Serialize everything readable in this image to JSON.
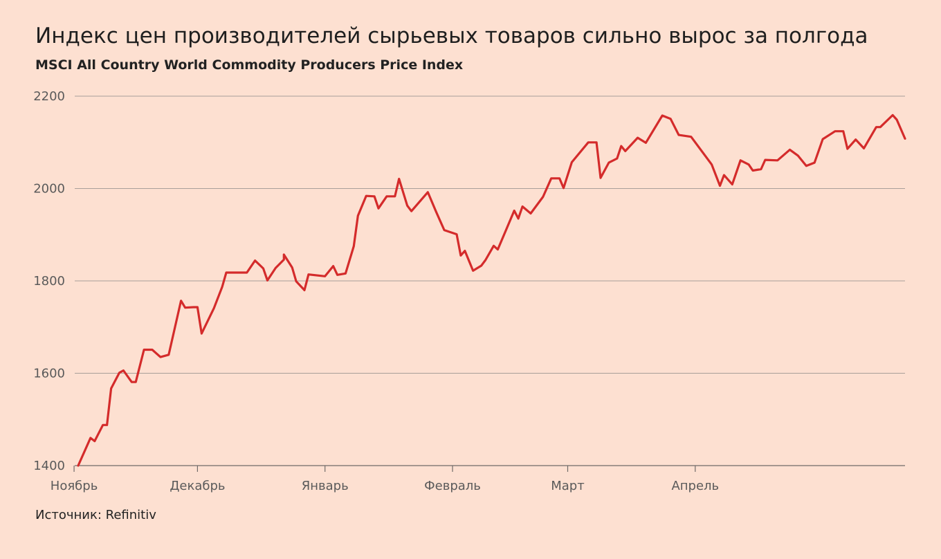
{
  "title": "Индекс цен производителей сырьевых товаров сильно вырос за полгода",
  "subtitle": "MSCI All Country World Commodity Producers Price Index",
  "source": "Источник: Refinitiv",
  "colors": {
    "background": "#fde0d1",
    "line": "#d42b2b",
    "grid": "#a89e99"
  },
  "chart_data": {
    "type": "line",
    "title": "Индекс цен производителей сырьевых товаров сильно вырос за полгода",
    "subtitle": "MSCI All Country World Commodity Producers Price Index",
    "ylim": [
      1400,
      2200
    ],
    "yticks": [
      1400,
      1600,
      1800,
      2000,
      2200
    ],
    "grid": true,
    "x_start": "2020-11-02",
    "x_end": "2021-04-30",
    "xticks": [
      {
        "label": "Ноябрь",
        "date": "2020-11-01"
      },
      {
        "label": "Декабрь",
        "date": "2020-12-01"
      },
      {
        "label": "Январь",
        "date": "2021-01-01"
      },
      {
        "label": "Февраль",
        "date": "2021-02-01"
      },
      {
        "label": "Март",
        "date": "2021-03-01"
      },
      {
        "label": "Апрель",
        "date": "2021-04-01"
      }
    ],
    "series": [
      {
        "values": [
          {
            "x": "2020-11-02",
            "y": 1400
          },
          {
            "x": "2020-11-05",
            "y": 1460
          },
          {
            "x": "2020-11-06",
            "y": 1453
          },
          {
            "x": "2020-11-08",
            "y": 1488
          },
          {
            "x": "2020-11-09",
            "y": 1488
          },
          {
            "x": "2020-11-10",
            "y": 1567
          },
          {
            "x": "2020-11-12",
            "y": 1601
          },
          {
            "x": "2020-11-13",
            "y": 1606
          },
          {
            "x": "2020-11-15",
            "y": 1581
          },
          {
            "x": "2020-11-16",
            "y": 1581
          },
          {
            "x": "2020-11-18",
            "y": 1651
          },
          {
            "x": "2020-11-20",
            "y": 1651
          },
          {
            "x": "2020-11-22",
            "y": 1635
          },
          {
            "x": "2020-11-24",
            "y": 1640
          },
          {
            "x": "2020-11-27",
            "y": 1757
          },
          {
            "x": "2020-11-28",
            "y": 1742
          },
          {
            "x": "2020-11-30",
            "y": 1743
          },
          {
            "x": "2020-12-01",
            "y": 1743
          },
          {
            "x": "2020-12-02",
            "y": 1686
          },
          {
            "x": "2020-12-05",
            "y": 1741
          },
          {
            "x": "2020-12-07",
            "y": 1787
          },
          {
            "x": "2020-12-08",
            "y": 1818
          },
          {
            "x": "2020-12-13",
            "y": 1818
          },
          {
            "x": "2020-12-15",
            "y": 1844
          },
          {
            "x": "2020-12-17",
            "y": 1827
          },
          {
            "x": "2020-12-18",
            "y": 1801
          },
          {
            "x": "2020-12-20",
            "y": 1828
          },
          {
            "x": "2020-12-22",
            "y": 1846
          },
          {
            "x": "2020-12-22",
            "y": 1857
          },
          {
            "x": "2020-12-24",
            "y": 1829
          },
          {
            "x": "2020-12-25",
            "y": 1799
          },
          {
            "x": "2020-12-27",
            "y": 1780
          },
          {
            "x": "2020-12-28",
            "y": 1814
          },
          {
            "x": "2021-01-01",
            "y": 1810
          },
          {
            "x": "2021-01-03",
            "y": 1832
          },
          {
            "x": "2021-01-04",
            "y": 1813
          },
          {
            "x": "2021-01-06",
            "y": 1816
          },
          {
            "x": "2021-01-08",
            "y": 1875
          },
          {
            "x": "2021-01-09",
            "y": 1941
          },
          {
            "x": "2021-01-11",
            "y": 1984
          },
          {
            "x": "2021-01-13",
            "y": 1983
          },
          {
            "x": "2021-01-14",
            "y": 1957
          },
          {
            "x": "2021-01-16",
            "y": 1983
          },
          {
            "x": "2021-01-18",
            "y": 1983
          },
          {
            "x": "2021-01-19",
            "y": 2021
          },
          {
            "x": "2021-01-21",
            "y": 1963
          },
          {
            "x": "2021-01-22",
            "y": 1951
          },
          {
            "x": "2021-01-26",
            "y": 1992
          },
          {
            "x": "2021-01-28",
            "y": 1950
          },
          {
            "x": "2021-01-30",
            "y": 1910
          },
          {
            "x": "2021-02-02",
            "y": 1901
          },
          {
            "x": "2021-02-03",
            "y": 1855
          },
          {
            "x": "2021-02-04",
            "y": 1865
          },
          {
            "x": "2021-02-06",
            "y": 1822
          },
          {
            "x": "2021-02-08",
            "y": 1833
          },
          {
            "x": "2021-02-09",
            "y": 1845
          },
          {
            "x": "2021-02-11",
            "y": 1876
          },
          {
            "x": "2021-02-12",
            "y": 1868
          },
          {
            "x": "2021-02-14",
            "y": 1910
          },
          {
            "x": "2021-02-16",
            "y": 1952
          },
          {
            "x": "2021-02-17",
            "y": 1935
          },
          {
            "x": "2021-02-18",
            "y": 1961
          },
          {
            "x": "2021-02-20",
            "y": 1946
          },
          {
            "x": "2021-02-23",
            "y": 1982
          },
          {
            "x": "2021-02-25",
            "y": 2022
          },
          {
            "x": "2021-02-27",
            "y": 2022
          },
          {
            "x": "2021-02-28",
            "y": 2001
          },
          {
            "x": "2021-03-02",
            "y": 2057
          },
          {
            "x": "2021-03-06",
            "y": 2100
          },
          {
            "x": "2021-03-08",
            "y": 2100
          },
          {
            "x": "2021-03-09",
            "y": 2023
          },
          {
            "x": "2021-03-11",
            "y": 2056
          },
          {
            "x": "2021-03-13",
            "y": 2065
          },
          {
            "x": "2021-03-14",
            "y": 2092
          },
          {
            "x": "2021-03-15",
            "y": 2081
          },
          {
            "x": "2021-03-18",
            "y": 2110
          },
          {
            "x": "2021-03-20",
            "y": 2099
          },
          {
            "x": "2021-03-24",
            "y": 2158
          },
          {
            "x": "2021-03-26",
            "y": 2151
          },
          {
            "x": "2021-03-28",
            "y": 2116
          },
          {
            "x": "2021-03-31",
            "y": 2112
          },
          {
            "x": "2021-04-05",
            "y": 2052
          },
          {
            "x": "2021-04-07",
            "y": 2006
          },
          {
            "x": "2021-04-08",
            "y": 2029
          },
          {
            "x": "2021-04-10",
            "y": 2009
          },
          {
            "x": "2021-04-12",
            "y": 2061
          },
          {
            "x": "2021-04-14",
            "y": 2052
          },
          {
            "x": "2021-04-15",
            "y": 2039
          },
          {
            "x": "2021-04-17",
            "y": 2042
          },
          {
            "x": "2021-04-18",
            "y": 2062
          },
          {
            "x": "2021-04-21",
            "y": 2061
          },
          {
            "x": "2021-04-24",
            "y": 2084
          },
          {
            "x": "2021-04-26",
            "y": 2071
          },
          {
            "x": "2021-04-28",
            "y": 2049
          },
          {
            "x": "2021-04-30",
            "y": 2056
          },
          {
            "x": "2021-05-02",
            "y": 2107
          },
          {
            "x": "2021-05-05",
            "y": 2124
          },
          {
            "x": "2021-05-07",
            "y": 2124
          },
          {
            "x": "2021-05-08",
            "y": 2086
          },
          {
            "x": "2021-05-10",
            "y": 2106
          },
          {
            "x": "2021-05-12",
            "y": 2087
          },
          {
            "x": "2021-05-15",
            "y": 2133
          },
          {
            "x": "2021-05-16",
            "y": 2133
          },
          {
            "x": "2021-05-19",
            "y": 2159
          },
          {
            "x": "2021-05-20",
            "y": 2149
          },
          {
            "x": "2021-05-22",
            "y": 2108
          }
        ]
      }
    ]
  }
}
